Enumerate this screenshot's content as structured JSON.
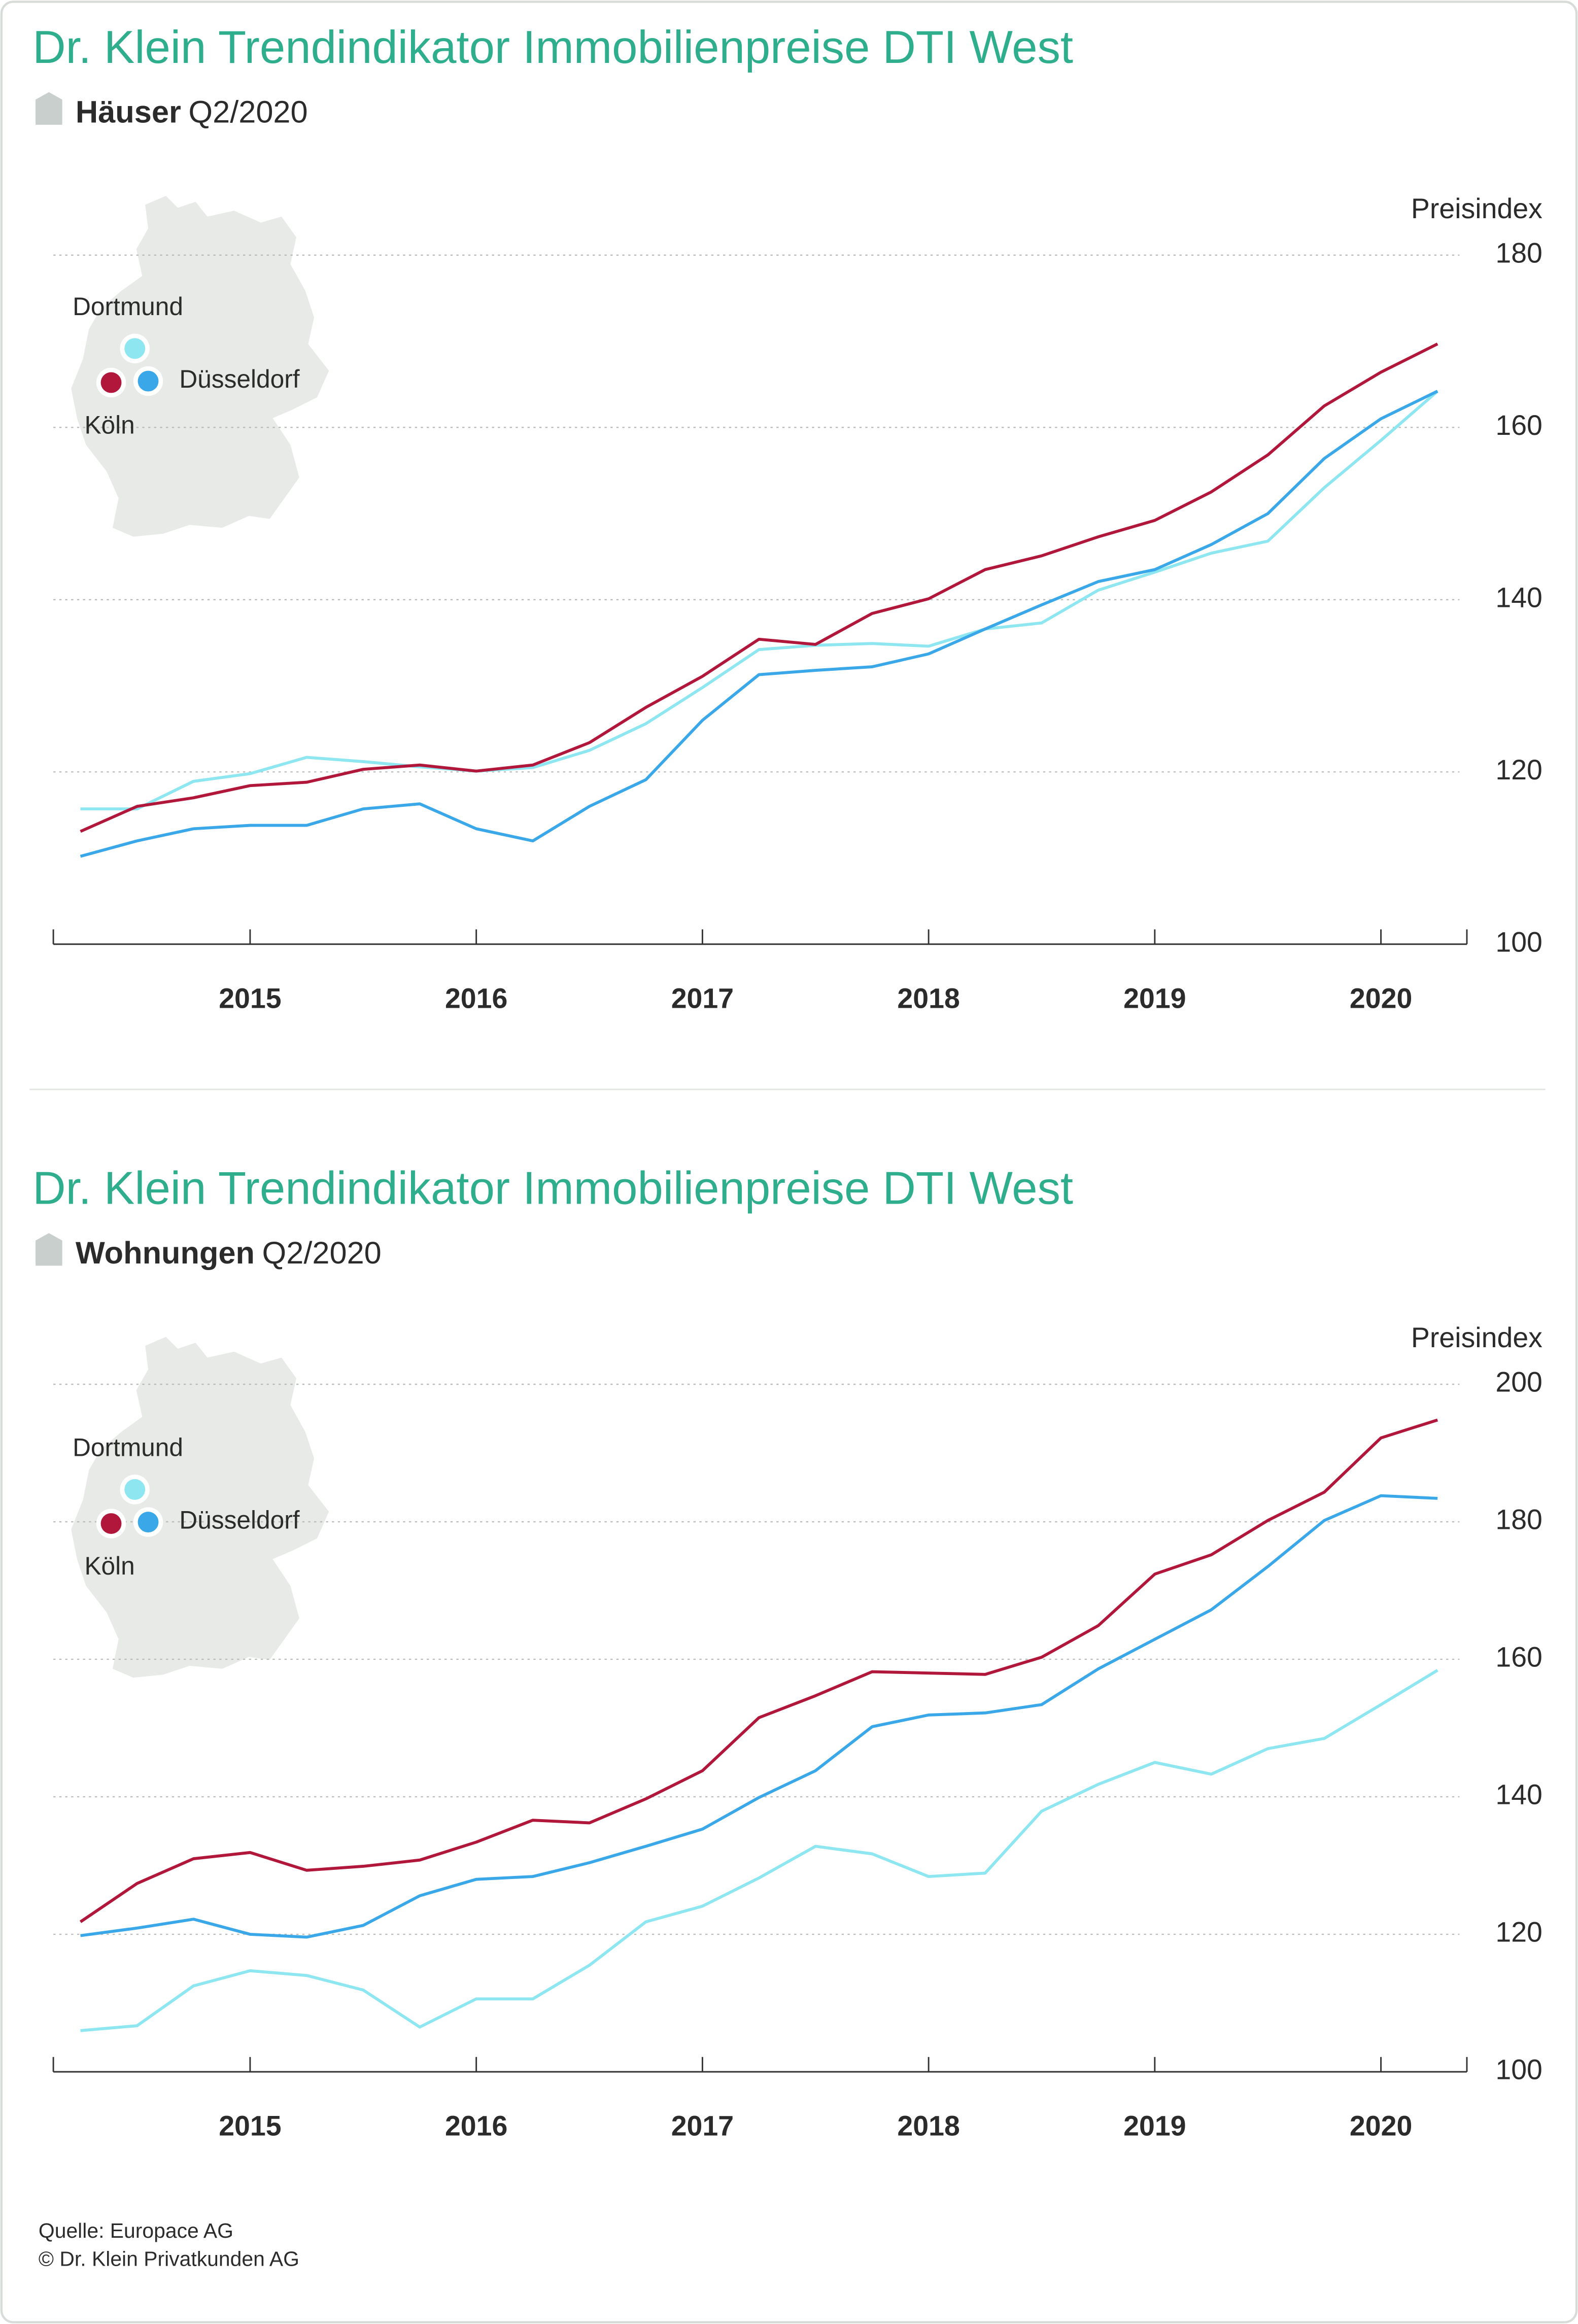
{
  "chart_data": [
    {
      "type": "line",
      "title": "Dr. Klein Trendindikator Immobilienpreise DTI West",
      "subtitle": "Häuser",
      "period": "Q2/2020",
      "y_label": "Preisindex",
      "x": [
        2014.25,
        2014.5,
        2014.75,
        2015,
        2015.25,
        2015.5,
        2015.75,
        2016,
        2016.25,
        2016.5,
        2016.75,
        2017,
        2017.25,
        2017.5,
        2017.75,
        2018,
        2018.25,
        2018.5,
        2018.75,
        2019,
        2019.25,
        2019.5,
        2019.75,
        2020,
        2020.25
      ],
      "series": [
        {
          "name": "Köln",
          "color": "#b0173a",
          "values": [
            113.1,
            116.0,
            117.0,
            118.4,
            118.8,
            120.3,
            120.8,
            120.1,
            120.8,
            123.4,
            127.5,
            131.1,
            135.4,
            134.8,
            138.4,
            140.1,
            143.5,
            145.1,
            147.3,
            149.2,
            152.5,
            156.8,
            162.5,
            166.4,
            169.7
          ]
        },
        {
          "name": "Düsseldorf",
          "color": "#3aa8e8",
          "values": [
            110.2,
            112.0,
            113.4,
            113.8,
            113.8,
            115.7,
            116.3,
            113.4,
            112.0,
            116.0,
            119.1,
            126.0,
            131.3,
            131.8,
            132.2,
            133.7,
            136.6,
            139.4,
            142.1,
            143.5,
            146.4,
            150.0,
            156.4,
            161.0,
            164.2
          ]
        },
        {
          "name": "Dortmund",
          "color": "#8de6f0",
          "values": [
            115.7,
            115.7,
            118.9,
            119.8,
            121.7,
            121.2,
            120.6,
            120.1,
            120.5,
            122.5,
            125.6,
            129.8,
            134.2,
            134.7,
            134.9,
            134.6,
            136.6,
            137.3,
            141.1,
            143.2,
            145.4,
            146.8,
            153.0,
            158.5,
            164.2
          ]
        }
      ],
      "xlim": [
        2014.13,
        2020.38
      ],
      "xticks": [
        2015,
        2016,
        2017,
        2018,
        2019,
        2020
      ],
      "ylim": [
        100,
        180
      ],
      "yticks": [
        100,
        120,
        140,
        160,
        180
      ],
      "grid": true
    },
    {
      "type": "line",
      "title": "Dr. Klein Trendindikator Immobilienpreise DTI West",
      "subtitle": "Wohnungen",
      "period": "Q2/2020",
      "y_label": "Preisindex",
      "x": [
        2014.25,
        2014.5,
        2014.75,
        2015,
        2015.25,
        2015.5,
        2015.75,
        2016,
        2016.25,
        2016.5,
        2016.75,
        2017,
        2017.25,
        2017.5,
        2017.75,
        2018,
        2018.25,
        2018.5,
        2018.75,
        2019,
        2019.25,
        2019.5,
        2019.75,
        2020,
        2020.25
      ],
      "series": [
        {
          "name": "Köln",
          "color": "#b0173a",
          "values": [
            121.8,
            127.4,
            131.0,
            131.9,
            129.3,
            129.9,
            130.8,
            133.4,
            136.6,
            136.2,
            139.7,
            143.8,
            151.5,
            154.7,
            158.2,
            158.0,
            157.8,
            160.3,
            164.9,
            172.4,
            175.2,
            180.2,
            184.3,
            192.2,
            194.8
          ]
        },
        {
          "name": "Düsseldorf",
          "color": "#3aa8e8",
          "values": [
            119.8,
            120.9,
            122.2,
            120.0,
            119.6,
            121.3,
            125.6,
            128.0,
            128.4,
            130.4,
            132.8,
            135.3,
            139.9,
            143.8,
            150.2,
            151.9,
            152.2,
            153.4,
            158.6,
            162.9,
            167.2,
            173.5,
            180.2,
            183.8,
            183.4
          ]
        },
        {
          "name": "Dortmund",
          "color": "#8de6f0",
          "values": [
            106.0,
            106.7,
            112.5,
            114.7,
            114.0,
            111.9,
            106.5,
            110.6,
            110.6,
            115.5,
            121.8,
            124.1,
            128.2,
            132.8,
            131.7,
            128.4,
            128.9,
            137.9,
            141.8,
            145.0,
            143.3,
            147.0,
            148.5,
            153.4,
            158.4
          ]
        }
      ],
      "xlim": [
        2014.13,
        2020.38
      ],
      "xticks": [
        2015,
        2016,
        2017,
        2018,
        2019,
        2020
      ],
      "ylim": [
        100,
        200
      ],
      "yticks": [
        100,
        120,
        140,
        160,
        180,
        200
      ],
      "grid": true
    }
  ],
  "footer": {
    "source": "Quelle: Europace AG",
    "copyright": "© Dr. Klein Privatkunden AG"
  }
}
